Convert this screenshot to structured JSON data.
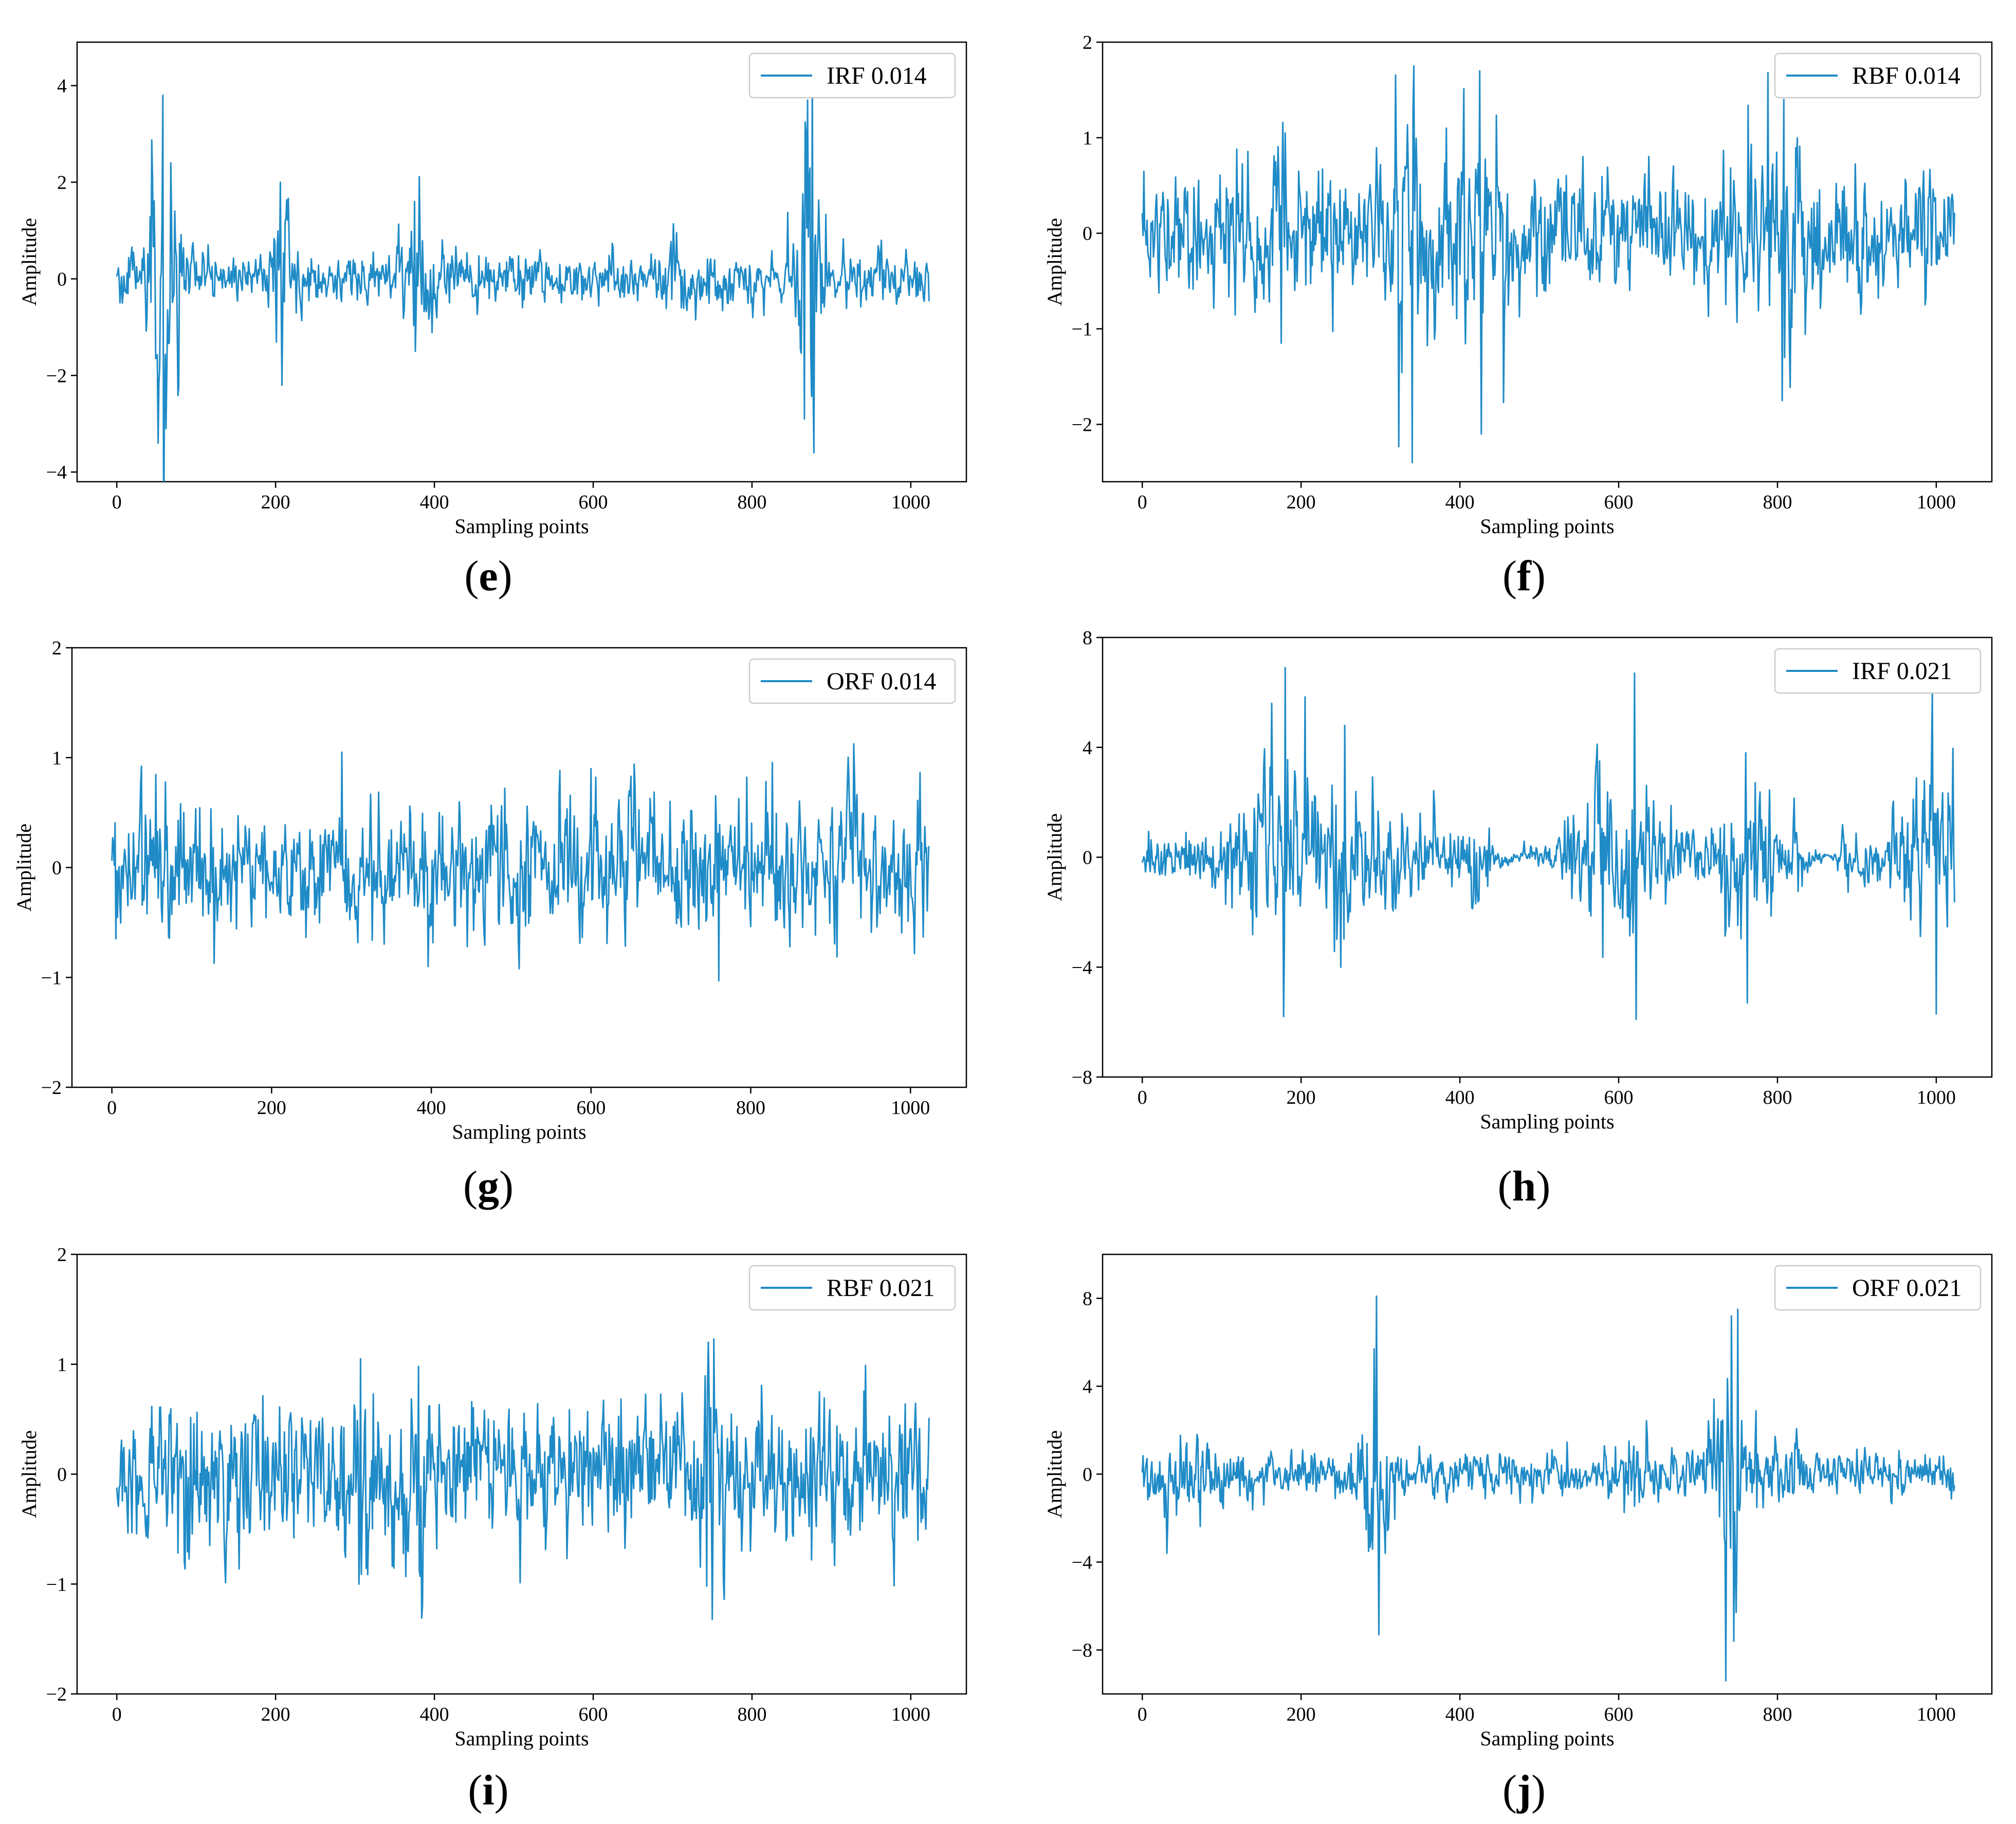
{
  "figure": {
    "panels": [
      {
        "id": "e",
        "caption_letter": "e",
        "chart_data": {
          "type": "line",
          "xlabel": "Sampling points",
          "ylabel": "Amplitude",
          "xlim": [
            -50,
            1070
          ],
          "ylim": [
            -4.2,
            4.9
          ],
          "xticks": [
            0,
            200,
            400,
            600,
            800,
            1000
          ],
          "yticks": [
            -4,
            -2,
            0,
            2,
            4
          ],
          "legend": "top-right",
          "grid": false,
          "series": [
            {
              "name": "IRF 0.014",
              "color": "#1f8bc7",
              "n_points": 1024,
              "baseline_amplitude": 0.23,
              "bursts": [
                {
                  "center": 58,
                  "width": 18,
                  "amp": 2.7
                },
                {
                  "center": 210,
                  "width": 10,
                  "amp": 1.4
                },
                {
                  "center": 375,
                  "width": 22,
                  "amp": 0.7
                },
                {
                  "center": 705,
                  "width": 10,
                  "amp": 0.6
                },
                {
                  "center": 872,
                  "width": 14,
                  "amp": 3.0
                }
              ],
              "peaks": [
                {
                  "x": 58,
                  "y": 3.8
                },
                {
                  "x": 52,
                  "y": -3.4
                },
                {
                  "x": 62,
                  "y": -3.1
                },
                {
                  "x": 68,
                  "y": 2.4
                },
                {
                  "x": 206,
                  "y": 2.0
                },
                {
                  "x": 208,
                  "y": -2.2
                },
                {
                  "x": 375,
                  "y": 1.6
                },
                {
                  "x": 870,
                  "y": 3.7
                },
                {
                  "x": 876,
                  "y": 4.4
                },
                {
                  "x": 878,
                  "y": -3.6
                },
                {
                  "x": 866,
                  "y": -2.9
                }
              ]
            }
          ]
        }
      },
      {
        "id": "f",
        "caption_letter": "f",
        "chart_data": {
          "type": "line",
          "xlabel": "Sampling points",
          "ylabel": "Amplitude",
          "xlim": [
            -50,
            1070
          ],
          "ylim": [
            -2.6,
            2.0
          ],
          "xticks": [
            0,
            200,
            400,
            600,
            800,
            1000
          ],
          "yticks": [
            -2,
            -1,
            0,
            1,
            2
          ],
          "legend": "top-right",
          "grid": false,
          "series": [
            {
              "name": "RBF 0.014",
              "color": "#1f8bc7",
              "n_points": 1024,
              "baseline_amplitude": 0.28,
              "bursts": [
                {
                  "center": 345,
                  "width": 40,
                  "amp": 0.55
                },
                {
                  "center": 420,
                  "width": 30,
                  "amp": 0.45
                },
                {
                  "center": 810,
                  "width": 25,
                  "amp": 0.45
                },
                {
                  "center": 180,
                  "width": 40,
                  "amp": 0.15
                }
              ],
              "peaks": [
                {
                  "x": 342,
                  "y": 1.75
                },
                {
                  "x": 340,
                  "y": -2.4
                },
                {
                  "x": 425,
                  "y": 1.7
                },
                {
                  "x": 427,
                  "y": -2.1
                },
                {
                  "x": 808,
                  "y": 1.4
                },
                {
                  "x": 806,
                  "y": -1.75
                },
                {
                  "x": 180,
                  "y": 1.05
                },
                {
                  "x": 175,
                  "y": -1.15
                }
              ]
            }
          ]
        }
      },
      {
        "id": "g",
        "caption_letter": "g",
        "chart_data": {
          "type": "line",
          "xlabel": "Sampling points",
          "ylabel": "Amplitude",
          "xlim": [
            -50,
            1070
          ],
          "ylim": [
            -2,
            2
          ],
          "xticks": [
            0,
            200,
            400,
            600,
            800,
            1000
          ],
          "yticks": [
            -2,
            -1,
            0,
            1,
            2
          ],
          "legend": "top-right",
          "grid": false,
          "series": [
            {
              "name": "ORF 0.014",
              "color": "#1f8bc7",
              "n_points": 1024,
              "baseline_amplitude": 0.27,
              "bursts": [],
              "peaks": [
                {
                  "x": 288,
                  "y": 1.05
                },
                {
                  "x": 600,
                  "y": 0.9
                },
                {
                  "x": 760,
                  "y": -1.03
                },
                {
                  "x": 510,
                  "y": -0.92
                },
                {
                  "x": 128,
                  "y": -0.87
                }
              ]
            }
          ]
        }
      },
      {
        "id": "h",
        "caption_letter": "h",
        "chart_data": {
          "type": "line",
          "xlabel": "Sampling points",
          "ylabel": "Amplitude",
          "xlim": [
            -50,
            1070
          ],
          "ylim": [
            -8,
            8
          ],
          "xticks": [
            0,
            200,
            400,
            600,
            800,
            1000
          ],
          "yticks": [
            -8,
            -4,
            0,
            4,
            8
          ],
          "legend": "top-right",
          "grid": false,
          "series": [
            {
              "name": "IRF 0.021",
              "color": "#1f8bc7",
              "n_points": 1024,
              "baseline_amplitude": 0.4,
              "bursts": [
                {
                  "center": 175,
                  "width": 55,
                  "amp": 2.0
                },
                {
                  "center": 255,
                  "width": 40,
                  "amp": 1.8
                },
                {
                  "center": 325,
                  "width": 35,
                  "amp": 1.0
                },
                {
                  "center": 420,
                  "width": 30,
                  "amp": 0.8
                },
                {
                  "center": 600,
                  "width": 60,
                  "amp": 2.0
                },
                {
                  "center": 760,
                  "width": 35,
                  "amp": 1.6
                },
                {
                  "center": 990,
                  "width": 40,
                  "amp": 2.0
                }
              ],
              "quiet_ranges": [
                [
                  440,
                  530
                ],
                [
                  840,
                  880
                ]
              ],
              "peaks": [
                {
                  "x": 180,
                  "y": 6.9
                },
                {
                  "x": 178,
                  "y": -5.8
                },
                {
                  "x": 620,
                  "y": 6.7
                },
                {
                  "x": 622,
                  "y": -5.9
                },
                {
                  "x": 995,
                  "y": 6.0
                },
                {
                  "x": 1000,
                  "y": -5.7
                },
                {
                  "x": 760,
                  "y": 3.8
                },
                {
                  "x": 762,
                  "y": -5.3
                },
                {
                  "x": 255,
                  "y": 4.8
                },
                {
                  "x": 250,
                  "y": -4.0
                }
              ]
            }
          ]
        }
      },
      {
        "id": "i",
        "caption_letter": "i",
        "chart_data": {
          "type": "line",
          "xlabel": "Sampling points",
          "ylabel": "Amplitude",
          "xlim": [
            -50,
            1070
          ],
          "ylim": [
            -2,
            2
          ],
          "xticks": [
            0,
            200,
            400,
            600,
            800,
            1000
          ],
          "yticks": [
            -2,
            -1,
            0,
            1,
            2
          ],
          "legend": "top-right",
          "grid": false,
          "series": [
            {
              "name": "RBF 0.021",
              "color": "#1f8bc7",
              "n_points": 1024,
              "baseline_amplitude": 0.28,
              "bursts": [
                {
                  "center": 305,
                  "width": 20,
                  "amp": 0.3
                },
                {
                  "center": 380,
                  "width": 15,
                  "amp": 0.25
                },
                {
                  "center": 750,
                  "width": 15,
                  "amp": 0.55
                }
              ],
              "peaks": [
                {
                  "x": 745,
                  "y": 1.2
                },
                {
                  "x": 752,
                  "y": 1.23
                },
                {
                  "x": 750,
                  "y": -1.32
                },
                {
                  "x": 307,
                  "y": 1.05
                },
                {
                  "x": 305,
                  "y": -1.0
                },
                {
                  "x": 380,
                  "y": 0.98
                },
                {
                  "x": 382,
                  "y": -0.93
                }
              ]
            }
          ]
        }
      },
      {
        "id": "j",
        "caption_letter": "j",
        "chart_data": {
          "type": "line",
          "xlabel": "Sampling points",
          "ylabel": "Amplitude",
          "xlim": [
            -50,
            1070
          ],
          "ylim": [
            -10,
            10
          ],
          "xticks": [
            0,
            200,
            400,
            600,
            800,
            1000
          ],
          "yticks": [
            -8,
            -4,
            0,
            4,
            8
          ],
          "legend": "top-right",
          "grid": false,
          "series": [
            {
              "name": "ORF 0.021",
              "color": "#1f8bc7",
              "n_points": 1024,
              "baseline_amplitude": 0.45,
              "bursts": [
                {
                  "center": 60,
                  "width": 45,
                  "amp": 0.9
                },
                {
                  "center": 295,
                  "width": 20,
                  "amp": 3.0
                },
                {
                  "center": 620,
                  "width": 25,
                  "amp": 0.6
                },
                {
                  "center": 740,
                  "width": 25,
                  "amp": 3.0
                },
                {
                  "center": 800,
                  "width": 30,
                  "amp": 0.6
                }
              ],
              "peaks": [
                {
                  "x": 295,
                  "y": 8.1
                },
                {
                  "x": 298,
                  "y": -7.3
                },
                {
                  "x": 742,
                  "y": 7.2
                },
                {
                  "x": 750,
                  "y": 7.5
                },
                {
                  "x": 735,
                  "y": -9.4
                },
                {
                  "x": 745,
                  "y": -7.6
                }
              ]
            }
          ]
        }
      }
    ]
  }
}
